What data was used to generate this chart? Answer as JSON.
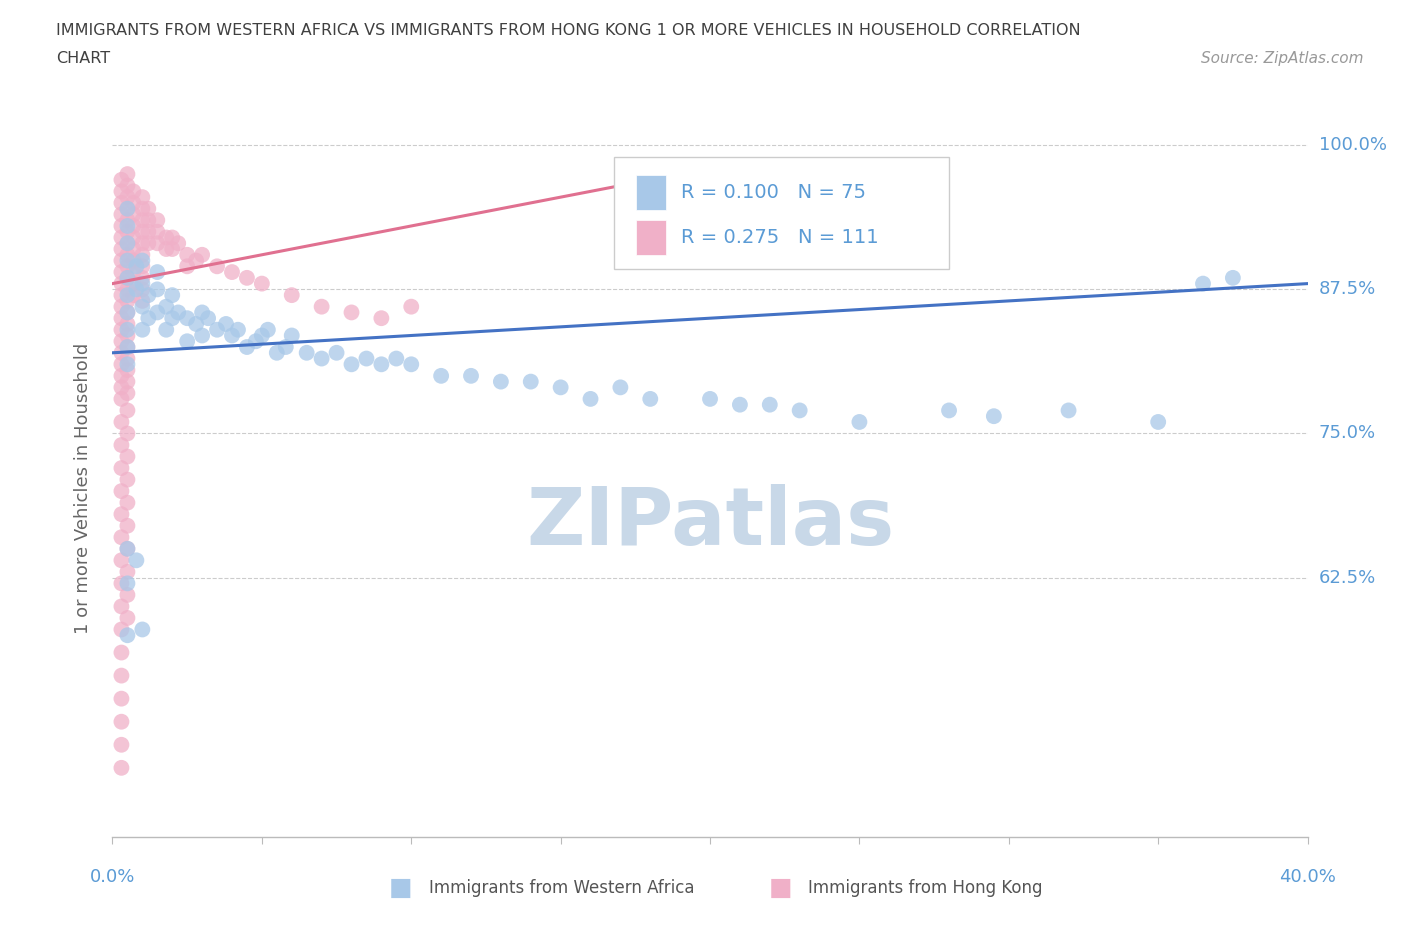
{
  "title_line1": "IMMIGRANTS FROM WESTERN AFRICA VS IMMIGRANTS FROM HONG KONG 1 OR MORE VEHICLES IN HOUSEHOLD CORRELATION",
  "title_line2": "CHART",
  "source": "Source: ZipAtlas.com",
  "legend_label1": "Immigrants from Western Africa",
  "legend_label2": "Immigrants from Hong Kong",
  "R_blue": 0.1,
  "N_blue": 75,
  "R_pink": 0.275,
  "N_pink": 111,
  "blue_color": "#a8c8e8",
  "pink_color": "#f0b0c8",
  "blue_line_color": "#4472c4",
  "pink_line_color": "#e07090",
  "watermark_color": "#c8d8e8",
  "title_color": "#404040",
  "axis_label_color": "#5b9bd5",
  "ylabel_text": "1 or more Vehicles in Household",
  "xlim": [
    0.0,
    0.4
  ],
  "ylim": [
    0.4,
    1.005
  ],
  "yticks": [
    0.625,
    0.75,
    0.875,
    1.0
  ],
  "ytick_labels": [
    "62.5%",
    "75.0%",
    "87.5%",
    "100.0%"
  ],
  "xtick_labels": [
    "0.0%",
    "",
    "",
    "",
    "",
    "",
    "",
    "",
    "40.0%"
  ],
  "blue_x": [
    0.005,
    0.005,
    0.005,
    0.005,
    0.005,
    0.005,
    0.005,
    0.005,
    0.005,
    0.005,
    0.008,
    0.008,
    0.01,
    0.01,
    0.01,
    0.01,
    0.012,
    0.012,
    0.015,
    0.015,
    0.015,
    0.018,
    0.018,
    0.02,
    0.02,
    0.022,
    0.025,
    0.025,
    0.028,
    0.03,
    0.03,
    0.032,
    0.035,
    0.038,
    0.04,
    0.042,
    0.045,
    0.048,
    0.05,
    0.052,
    0.055,
    0.058,
    0.06,
    0.065,
    0.07,
    0.075,
    0.08,
    0.085,
    0.09,
    0.095,
    0.1,
    0.11,
    0.12,
    0.13,
    0.14,
    0.15,
    0.16,
    0.17,
    0.18,
    0.2,
    0.21,
    0.22,
    0.23,
    0.25,
    0.28,
    0.295,
    0.32,
    0.35,
    0.365,
    0.375,
    0.005,
    0.005,
    0.005,
    0.008,
    0.01
  ],
  "blue_y": [
    0.945,
    0.93,
    0.915,
    0.9,
    0.885,
    0.87,
    0.855,
    0.84,
    0.825,
    0.81,
    0.895,
    0.875,
    0.9,
    0.88,
    0.86,
    0.84,
    0.87,
    0.85,
    0.89,
    0.875,
    0.855,
    0.86,
    0.84,
    0.87,
    0.85,
    0.855,
    0.85,
    0.83,
    0.845,
    0.855,
    0.835,
    0.85,
    0.84,
    0.845,
    0.835,
    0.84,
    0.825,
    0.83,
    0.835,
    0.84,
    0.82,
    0.825,
    0.835,
    0.82,
    0.815,
    0.82,
    0.81,
    0.815,
    0.81,
    0.815,
    0.81,
    0.8,
    0.8,
    0.795,
    0.795,
    0.79,
    0.78,
    0.79,
    0.78,
    0.78,
    0.775,
    0.775,
    0.77,
    0.76,
    0.77,
    0.765,
    0.77,
    0.76,
    0.88,
    0.885,
    0.65,
    0.62,
    0.575,
    0.64,
    0.58
  ],
  "pink_x": [
    0.003,
    0.003,
    0.003,
    0.003,
    0.003,
    0.003,
    0.003,
    0.003,
    0.003,
    0.003,
    0.003,
    0.003,
    0.003,
    0.003,
    0.003,
    0.003,
    0.003,
    0.003,
    0.003,
    0.003,
    0.005,
    0.005,
    0.005,
    0.005,
    0.005,
    0.005,
    0.005,
    0.005,
    0.005,
    0.005,
    0.005,
    0.005,
    0.005,
    0.005,
    0.005,
    0.005,
    0.005,
    0.005,
    0.005,
    0.005,
    0.007,
    0.007,
    0.007,
    0.007,
    0.007,
    0.007,
    0.007,
    0.007,
    0.007,
    0.007,
    0.01,
    0.01,
    0.01,
    0.01,
    0.01,
    0.01,
    0.01,
    0.01,
    0.01,
    0.01,
    0.012,
    0.012,
    0.012,
    0.012,
    0.015,
    0.015,
    0.015,
    0.018,
    0.018,
    0.02,
    0.02,
    0.022,
    0.025,
    0.025,
    0.028,
    0.03,
    0.035,
    0.04,
    0.045,
    0.05,
    0.06,
    0.07,
    0.08,
    0.09,
    0.1,
    0.003,
    0.003,
    0.003,
    0.003,
    0.003,
    0.003,
    0.003,
    0.003,
    0.003,
    0.003,
    0.005,
    0.005,
    0.005,
    0.005,
    0.005,
    0.005,
    0.005,
    0.005,
    0.005,
    0.005,
    0.003,
    0.003,
    0.003,
    0.003,
    0.003,
    0.003
  ],
  "pink_y": [
    0.97,
    0.96,
    0.95,
    0.94,
    0.93,
    0.92,
    0.91,
    0.9,
    0.89,
    0.88,
    0.87,
    0.86,
    0.85,
    0.84,
    0.83,
    0.82,
    0.81,
    0.8,
    0.79,
    0.78,
    0.975,
    0.965,
    0.955,
    0.945,
    0.935,
    0.925,
    0.915,
    0.905,
    0.895,
    0.885,
    0.875,
    0.865,
    0.855,
    0.845,
    0.835,
    0.825,
    0.815,
    0.805,
    0.795,
    0.785,
    0.96,
    0.95,
    0.94,
    0.93,
    0.92,
    0.91,
    0.9,
    0.89,
    0.88,
    0.87,
    0.955,
    0.945,
    0.935,
    0.925,
    0.915,
    0.905,
    0.895,
    0.885,
    0.875,
    0.865,
    0.945,
    0.935,
    0.925,
    0.915,
    0.935,
    0.925,
    0.915,
    0.92,
    0.91,
    0.92,
    0.91,
    0.915,
    0.905,
    0.895,
    0.9,
    0.905,
    0.895,
    0.89,
    0.885,
    0.88,
    0.87,
    0.86,
    0.855,
    0.85,
    0.86,
    0.76,
    0.74,
    0.72,
    0.7,
    0.68,
    0.66,
    0.64,
    0.62,
    0.6,
    0.58,
    0.77,
    0.75,
    0.73,
    0.71,
    0.69,
    0.67,
    0.65,
    0.63,
    0.61,
    0.59,
    0.56,
    0.54,
    0.52,
    0.5,
    0.48,
    0.46
  ],
  "blue_trend_x": [
    0.0,
    0.4
  ],
  "blue_trend_y": [
    0.82,
    0.88
  ],
  "pink_trend_x": [
    0.0,
    0.2
  ],
  "pink_trend_y": [
    0.88,
    0.98
  ]
}
